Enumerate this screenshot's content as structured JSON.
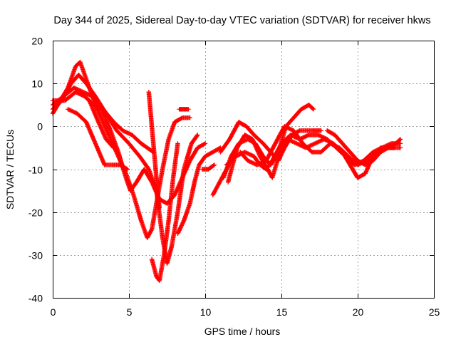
{
  "chart_data": {
    "type": "scatter",
    "title": "Day 344 of 2025, Sidereal Day-to-day VTEC variation (SDTVAR) for receiver hkws",
    "xlabel": "GPS time / hours",
    "ylabel": "SDTVAR / TECUs",
    "xlim": [
      0,
      25
    ],
    "ylim": [
      -40,
      20
    ],
    "x_ticks": [
      "0",
      "5",
      "10",
      "15",
      "20",
      "25"
    ],
    "y_ticks": [
      "20",
      "10",
      "0",
      "-10",
      "-20",
      "-30",
      "-40"
    ],
    "grid": true,
    "legend": "none",
    "marker": "plus",
    "color": "#ff0000",
    "series": [
      {
        "points": [
          [
            0,
            3
          ],
          [
            0.5,
            6
          ],
          [
            1,
            9
          ],
          [
            1.5,
            14
          ],
          [
            1.8,
            15
          ],
          [
            2.2,
            11
          ],
          [
            2.8,
            5
          ],
          [
            3.3,
            1
          ],
          [
            3.8,
            -3
          ],
          [
            4.3,
            -7
          ],
          [
            4.8,
            -11
          ],
          [
            5.3,
            -16
          ],
          [
            5.8,
            -22
          ],
          [
            6.2,
            -26
          ],
          [
            6.5,
            -24
          ],
          [
            6.8,
            -18
          ],
          [
            7.2,
            -10
          ],
          [
            7.6,
            -3
          ],
          [
            8,
            1
          ],
          [
            8.5,
            2
          ],
          [
            9,
            2
          ]
        ]
      },
      {
        "points": [
          [
            0,
            4
          ],
          [
            0.6,
            6
          ],
          [
            1.2,
            10
          ],
          [
            1.7,
            12
          ],
          [
            2.2,
            10
          ],
          [
            2.8,
            7
          ],
          [
            3.5,
            3
          ],
          [
            4.2,
            -1
          ],
          [
            5,
            -4
          ],
          [
            5.7,
            -7
          ],
          [
            6.3,
            -10
          ],
          [
            6.8,
            -15
          ],
          [
            7.2,
            -26
          ],
          [
            7.5,
            -32
          ],
          [
            7.8,
            -28
          ],
          [
            8.2,
            -20
          ],
          [
            8.6,
            -10
          ],
          [
            9.1,
            -4
          ],
          [
            9.5,
            -2
          ]
        ]
      },
      {
        "points": [
          [
            0,
            5
          ],
          [
            0.7,
            7
          ],
          [
            1.4,
            9
          ],
          [
            2,
            8
          ],
          [
            2.6,
            7
          ],
          [
            3.2,
            4
          ],
          [
            3.8,
            -1
          ],
          [
            4.3,
            -6
          ],
          [
            4.8,
            -12
          ],
          [
            5.1,
            -15
          ],
          [
            5.5,
            -13
          ],
          [
            6,
            -10
          ],
          [
            6.5,
            -13
          ],
          [
            7,
            -17
          ],
          [
            7.5,
            -18
          ],
          [
            8,
            -16
          ],
          [
            8.5,
            -12
          ],
          [
            9,
            -8
          ],
          [
            9.5,
            -5
          ],
          [
            10,
            -4
          ]
        ]
      },
      {
        "points": [
          [
            0,
            6
          ],
          [
            0.8,
            6
          ],
          [
            1.5,
            8
          ],
          [
            2.1,
            7
          ],
          [
            2.7,
            5
          ],
          [
            3.3,
            4
          ],
          [
            4,
            1
          ],
          [
            4.6,
            -1
          ],
          [
            5.2,
            -2
          ],
          [
            5.8,
            -4
          ],
          [
            6.2,
            -5
          ],
          [
            6.6,
            -6
          ]
        ]
      },
      {
        "points": [
          [
            1,
            4
          ],
          [
            1.6,
            3
          ],
          [
            2.2,
            1
          ],
          [
            2.8,
            -4
          ],
          [
            3.4,
            -9
          ],
          [
            3.9,
            -9
          ],
          [
            4.4,
            -9
          ],
          [
            4.9,
            -10
          ]
        ]
      },
      {
        "points": [
          [
            1.8,
            8
          ],
          [
            2.4,
            6
          ],
          [
            3,
            1
          ],
          [
            3.5,
            -3
          ],
          [
            4,
            -5
          ]
        ]
      },
      {
        "points": [
          [
            6.3,
            8
          ],
          [
            6.5,
            0
          ],
          [
            6.7,
            -8
          ],
          [
            6.9,
            -16
          ],
          [
            7,
            -19
          ]
        ]
      },
      {
        "points": [
          [
            6.5,
            -31
          ],
          [
            6.8,
            -35
          ],
          [
            7,
            -36
          ],
          [
            7.3,
            -30
          ],
          [
            7.6,
            -22
          ],
          [
            7.9,
            -12
          ],
          [
            8.2,
            -4
          ]
        ]
      },
      {
        "points": [
          [
            8.3,
            4
          ],
          [
            8.6,
            4
          ],
          [
            8.9,
            4
          ]
        ]
      },
      {
        "points": [
          [
            8.2,
            -25
          ],
          [
            8.6,
            -22
          ],
          [
            9,
            -18
          ],
          [
            9.3,
            -13
          ],
          [
            9.6,
            -9
          ],
          [
            10,
            -7
          ],
          [
            10.5,
            -6
          ],
          [
            11,
            -5
          ]
        ]
      },
      {
        "points": [
          [
            9.8,
            -10
          ],
          [
            10.2,
            -10
          ],
          [
            10.6,
            -9
          ]
        ]
      },
      {
        "points": [
          [
            11,
            -6
          ],
          [
            11.6,
            -3
          ],
          [
            12.2,
            1
          ],
          [
            12.7,
            0
          ],
          [
            13.2,
            -2
          ],
          [
            13.8,
            -4
          ],
          [
            14.3,
            -6
          ],
          [
            14.8,
            -8
          ],
          [
            15.2,
            -5
          ],
          [
            15.7,
            -2
          ],
          [
            16.2,
            -1
          ],
          [
            17,
            -1
          ],
          [
            17.6,
            -1
          ]
        ]
      },
      {
        "points": [
          [
            11.2,
            -12
          ],
          [
            11.7,
            -7
          ],
          [
            12.2,
            -4
          ],
          [
            12.8,
            -3
          ],
          [
            13.3,
            -4
          ],
          [
            13.8,
            -7
          ],
          [
            14.3,
            -9
          ],
          [
            14.8,
            -6
          ],
          [
            15.3,
            0
          ],
          [
            15.8,
            2
          ],
          [
            16.3,
            4
          ],
          [
            16.8,
            5
          ],
          [
            17.1,
            4
          ]
        ]
      },
      {
        "points": [
          [
            11.4,
            -9
          ],
          [
            12,
            -7
          ],
          [
            12.6,
            -6
          ],
          [
            13.2,
            -7
          ],
          [
            13.6,
            -9
          ],
          [
            14,
            -10
          ],
          [
            14.4,
            -8
          ],
          [
            15,
            -4
          ],
          [
            15.6,
            -2
          ],
          [
            16.2,
            -3
          ],
          [
            16.8,
            -2
          ],
          [
            17.4,
            -2
          ],
          [
            18,
            -3
          ],
          [
            18.6,
            -5
          ],
          [
            19.2,
            -7
          ],
          [
            19.8,
            -9
          ],
          [
            20.4,
            -8
          ],
          [
            21,
            -6
          ],
          [
            21.6,
            -5
          ],
          [
            22.2,
            -4
          ],
          [
            22.8,
            -4
          ]
        ]
      },
      {
        "points": [
          [
            11.5,
            -13
          ],
          [
            12.1,
            -5
          ],
          [
            12.6,
            -2
          ],
          [
            13.1,
            -3
          ],
          [
            13.6,
            -7
          ],
          [
            14.1,
            -10
          ],
          [
            14.4,
            -12
          ],
          [
            14.9,
            -6
          ],
          [
            15.4,
            -3
          ],
          [
            16,
            -4
          ],
          [
            16.6,
            -5
          ],
          [
            17.2,
            -4
          ],
          [
            17.8,
            -3
          ],
          [
            18.4,
            -4
          ],
          [
            19,
            -6
          ],
          [
            19.5,
            -9
          ],
          [
            20,
            -12
          ],
          [
            20.5,
            -11
          ],
          [
            21,
            -7
          ],
          [
            21.5,
            -5
          ],
          [
            22,
            -5
          ],
          [
            22.8,
            -5
          ]
        ]
      },
      {
        "points": [
          [
            12.3,
            -6
          ],
          [
            12.8,
            -8
          ],
          [
            13.4,
            -9
          ],
          [
            14,
            -8
          ],
          [
            14.6,
            -4
          ],
          [
            15.2,
            0
          ],
          [
            15.8,
            -1
          ],
          [
            16.4,
            -4
          ],
          [
            17,
            -6
          ],
          [
            17.6,
            -6
          ],
          [
            18.2,
            -4
          ],
          [
            18.8,
            -5
          ],
          [
            19.4,
            -7
          ],
          [
            20,
            -9
          ],
          [
            20.6,
            -8
          ],
          [
            21.2,
            -7
          ],
          [
            21.8,
            -5
          ],
          [
            22.4,
            -5
          ]
        ]
      },
      {
        "points": [
          [
            18,
            -1
          ],
          [
            18.5,
            -2
          ],
          [
            19,
            -4
          ],
          [
            19.5,
            -6
          ],
          [
            20,
            -8
          ],
          [
            20.5,
            -9
          ],
          [
            21,
            -8
          ],
          [
            21.5,
            -6
          ],
          [
            22,
            -5
          ],
          [
            22.5,
            -4
          ],
          [
            22.8,
            -3
          ]
        ]
      },
      {
        "points": [
          [
            10.5,
            -16
          ],
          [
            11.4,
            -10
          ],
          [
            11.8,
            -7
          ]
        ]
      }
    ]
  }
}
